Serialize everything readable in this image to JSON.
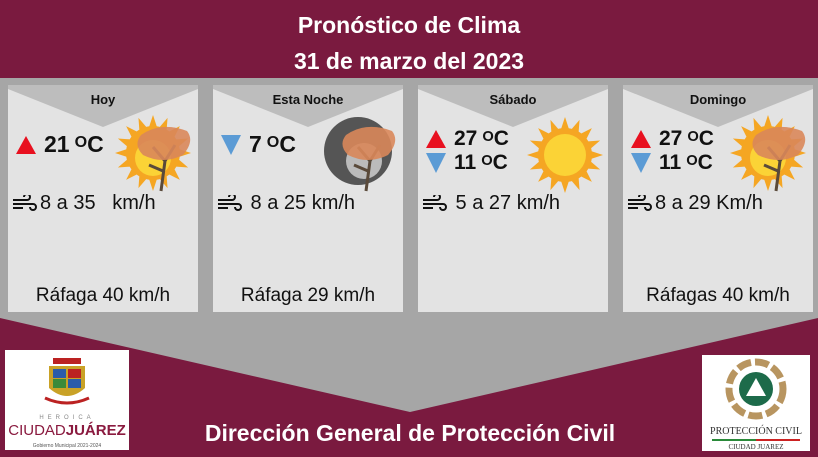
{
  "header": {
    "title": "Pronóstico de Clima",
    "date": "31 de marzo del 2023"
  },
  "colors": {
    "maroon": "#7a1a3f",
    "gray": "#a6a6a6",
    "card": "#e3e3e3",
    "up": "#e8101f",
    "down": "#5b9bd5"
  },
  "cards": [
    {
      "day": "Hoy",
      "icon": "windy-sun-icon",
      "temps": [
        {
          "dir": "up",
          "value": "21",
          "sup": "O",
          "unit": "C"
        }
      ],
      "wind": "8 a 35   km/h",
      "gust": "Ráfaga 40 km/h"
    },
    {
      "day": "Esta Noche",
      "icon": "windy-moon-icon",
      "temps": [
        {
          "dir": "down",
          "value": "7",
          "sup": "O",
          "unit": "C"
        }
      ],
      "wind": " 8 a 25 km/h",
      "gust": "Ráfaga 29 km/h"
    },
    {
      "day": "Sábado",
      "icon": "sun-icon",
      "temps": [
        {
          "dir": "up",
          "value": "27",
          "sup": "O",
          "unit": "C"
        },
        {
          "dir": "down",
          "value": "11",
          "sup": "O",
          "unit": "C"
        }
      ],
      "wind": " 5 a 27 km/h",
      "gust": ""
    },
    {
      "day": "Domingo",
      "icon": "windy-sun-icon",
      "temps": [
        {
          "dir": "up",
          "value": "27",
          "sup": "O",
          "unit": "C"
        },
        {
          "dir": "down",
          "value": "11",
          "sup": "O",
          "unit": "C"
        }
      ],
      "wind": "8 a 29 Km/h",
      "gust": "Ráfagas 40 km/h"
    }
  ],
  "logos": {
    "left": {
      "line1": "HEROICA",
      "line2a": "CIUDAD",
      "line2b": "JUÁREZ",
      "line3": "Gobierno Municipal 2021-2024"
    },
    "right": {
      "line1": "PROTECCIÓN CIVIL",
      "line2": "CIUDAD JUAREZ"
    }
  },
  "footer": {
    "text": "Dirección General de Protección Civil"
  }
}
